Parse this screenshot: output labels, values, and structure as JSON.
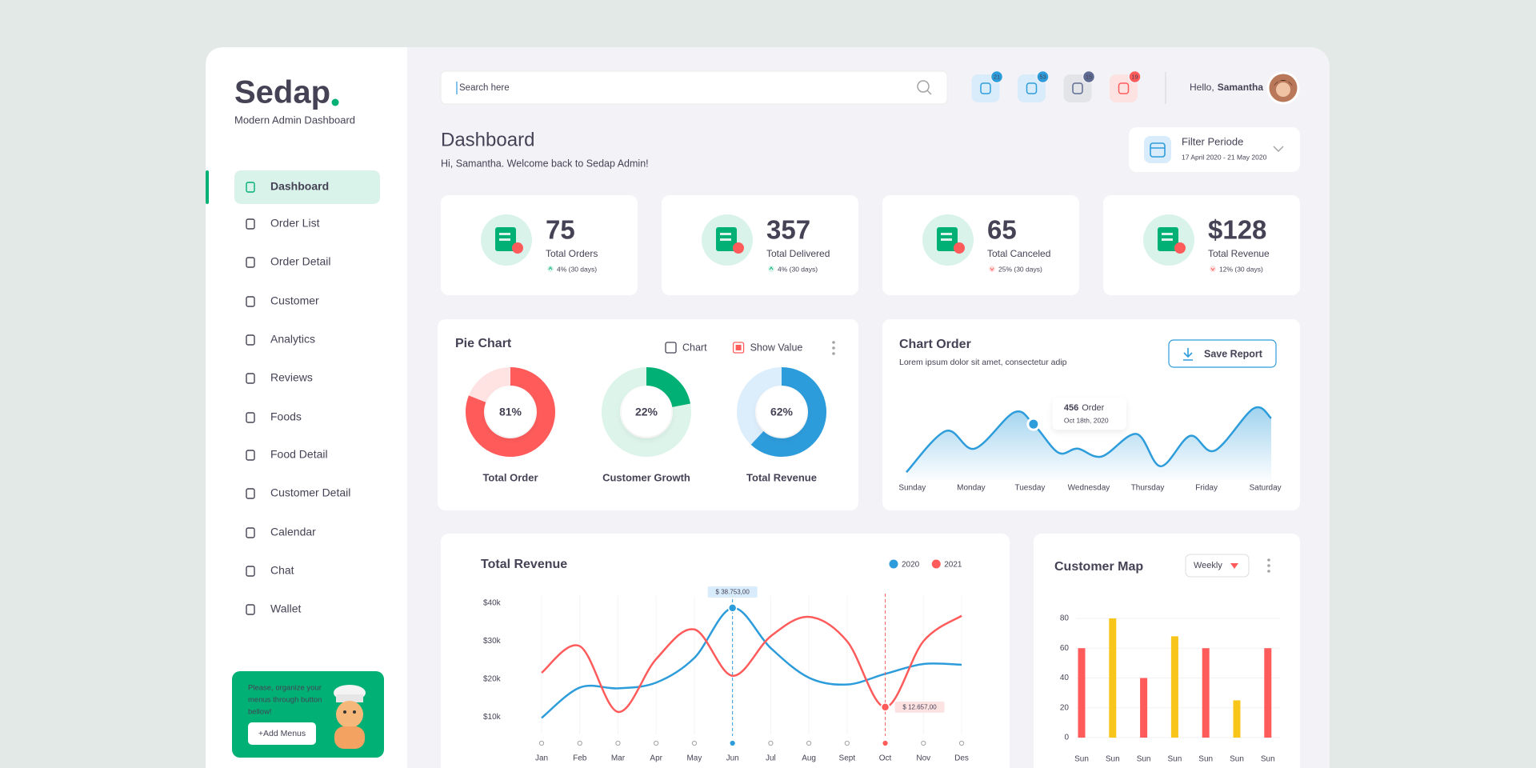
{
  "sidebar": {
    "logo": "Sedap",
    "tagline": "Modern Admin Dashboard",
    "menu": [
      "Dashboard",
      "Order List",
      "Order Detail",
      "Customer",
      "Analytics",
      "Reviews",
      "Foods",
      "Food Detail",
      "Customer Detail",
      "Calendar",
      "Chat",
      "Wallet"
    ],
    "active": 0,
    "promo": {
      "lines": [
        "Please, organize your",
        "menus through button",
        "bellow!"
      ],
      "button": "+Add Menus"
    }
  },
  "header": {
    "search_placeholder": "Search here",
    "badges": [
      21,
      53,
      15,
      19
    ],
    "greeting": "Hello,",
    "user": "Samantha"
  },
  "page": {
    "title": "Dashboard",
    "subtitle": "Hi, Samantha. Welcome back  to Sedap Admin!",
    "filter": {
      "label": "Filter Periode",
      "range": "17 April 2020 - 21 May 2020"
    }
  },
  "stats": [
    {
      "value": 75,
      "label": "Total Orders",
      "change": "4% (30 days)",
      "trend": "up"
    },
    {
      "value": 357,
      "label": "Total Delivered",
      "change": "4% (30 days)",
      "trend": "up"
    },
    {
      "value": 65,
      "label": "Total Canceled",
      "change": "25% (30 days)",
      "trend": "down"
    },
    {
      "value": 128,
      "value_label": "$128",
      "label": "Total Revenue",
      "change": "12% (30 days)",
      "trend": "down"
    }
  ],
  "chart_data": [
    {
      "type": "pie",
      "title": "Pie Chart",
      "options": [
        {
          "label": "Chart",
          "checked": false
        },
        {
          "label": "Show Value",
          "checked": true
        }
      ],
      "categories": [
        "Total Order",
        "Customer Growth",
        "Total Revenue"
      ],
      "values": [
        81,
        22,
        62
      ],
      "value_labels": [
        "81%",
        "22%",
        "62%"
      ],
      "max": 100,
      "colors": [
        "#ff5b5b",
        "#00b074",
        "#2d9cdb"
      ],
      "track_colors": [
        "#ffe2e2",
        "#dcf4ea",
        "#dcedfb"
      ]
    },
    {
      "type": "area",
      "title": "Chart Order",
      "subtitle": "Lorem ipsum dolor sit amet, consectetur adip",
      "button": "Save Report",
      "x": [
        -0.1,
        0.57,
        1.06,
        1.73,
        2.06,
        2.48,
        2.81,
        3.22,
        3.81,
        4.22,
        4.72,
        5.14,
        5.8,
        6.1
      ],
      "values": [
        64,
        400,
        256,
        552,
        456,
        224,
        256,
        192,
        376,
        112,
        360,
        240,
        584,
        504
      ],
      "xlim": [
        -0.1,
        6.1
      ],
      "ylim": [
        0,
        640
      ],
      "xticks": [
        {
          "value": 0,
          "label": "Sunday"
        },
        {
          "value": 1,
          "label": "Monday"
        },
        {
          "value": 2,
          "label": "Tuesday"
        },
        {
          "value": 3,
          "label": "Wednesday"
        },
        {
          "value": 4,
          "label": "Thursday"
        },
        {
          "value": 5,
          "label": "Friday"
        },
        {
          "value": 6,
          "label": "Saturday"
        }
      ],
      "color": "#2d9cdb",
      "tooltip": {
        "index": 4,
        "unit": "Order",
        "date": "Oct 18th, 2020"
      }
    },
    {
      "type": "line",
      "title": "Total Revenue",
      "categories": [
        "Jan",
        "Feb",
        "Mar",
        "Apr",
        "May",
        "Jun",
        "Jul",
        "Aug",
        "Sept",
        "Oct",
        "Nov",
        "Des"
      ],
      "series": [
        {
          "name": "2020",
          "color": "#2d9cdb",
          "values": [
            9800,
            17800,
            17600,
            19100,
            25600,
            38753,
            28200,
            20400,
            18600,
            21400,
            24000,
            23800
          ],
          "value_labels": [
            null,
            null,
            null,
            null,
            null,
            "$ 38.753,00",
            null,
            null,
            null,
            null,
            null,
            null
          ]
        },
        {
          "name": "2021",
          "color": "#ff5b5b",
          "values": [
            21700,
            28700,
            11400,
            25300,
            33100,
            20900,
            31300,
            36400,
            30000,
            12657,
            30000,
            36700
          ],
          "value_labels": [
            null,
            null,
            null,
            null,
            null,
            null,
            null,
            null,
            null,
            "$ 12.657,00",
            null,
            null
          ]
        }
      ],
      "ylim": [
        0,
        40000
      ],
      "yticks": [
        {
          "value": 10000,
          "label": "$10k"
        },
        {
          "value": 20000,
          "label": "$20k"
        },
        {
          "value": 30000,
          "label": "$30k"
        },
        {
          "value": 40000,
          "label": "$40k"
        }
      ]
    },
    {
      "type": "bar",
      "title": "Customer Map",
      "dropdown": "Weekly",
      "categories": [
        "Sun",
        "Sun",
        "Sun",
        "Sun",
        "Sun",
        "Sun",
        "Sun"
      ],
      "values": [
        60,
        80,
        40,
        68,
        60,
        25,
        60
      ],
      "colors": [
        "#ff5b5b",
        "#f8c51b",
        "#ff5b5b",
        "#f8c51b",
        "#ff5b5b",
        "#f8c51b",
        "#ff5b5b"
      ],
      "ylim": [
        0,
        80
      ],
      "yticks": [
        0,
        20,
        40,
        60,
        80
      ],
      "grid": true
    }
  ]
}
